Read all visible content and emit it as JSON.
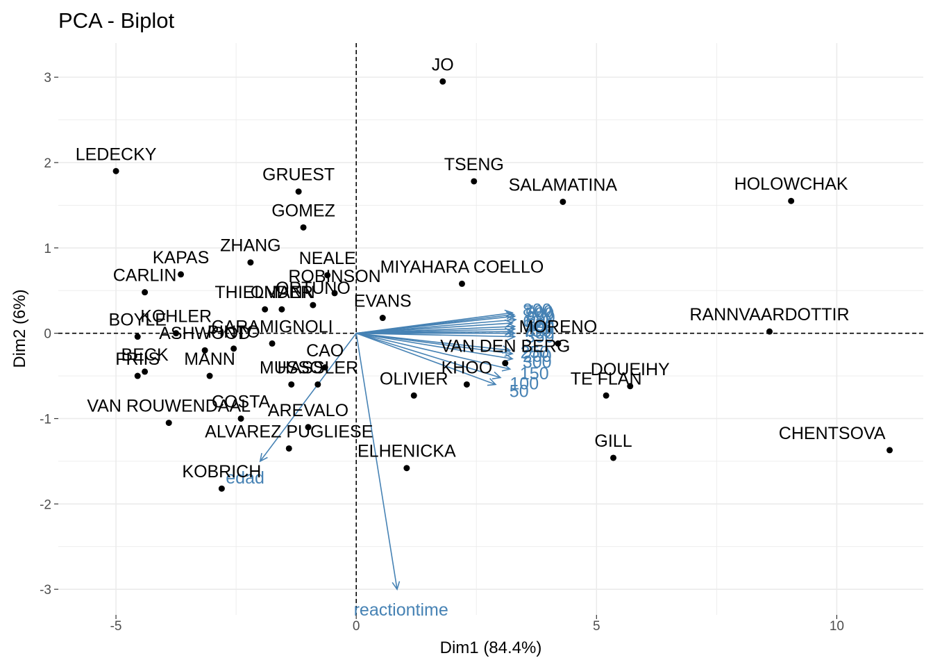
{
  "chart_data": {
    "type": "scatter",
    "title": "PCA - Biplot",
    "xlabel": "Dim1 (84.4%)",
    "ylabel": "Dim2 (6%)",
    "xlim": [
      -6.2,
      11.8
    ],
    "ylim": [
      -3.3,
      3.4
    ],
    "x_ticks": [
      -5,
      0,
      5,
      10
    ],
    "y_ticks": [
      -3,
      -2,
      -1,
      0,
      1,
      2,
      3
    ],
    "x_tick_labels": [
      "-5",
      "0",
      "5",
      "10"
    ],
    "y_tick_labels": [
      "-3",
      "-2",
      "-1",
      "0",
      "1",
      "2",
      "3"
    ],
    "grid": true,
    "reference_lines": {
      "x": 0,
      "y": 0,
      "style": "dashed"
    },
    "colors": {
      "points": "#000000",
      "variables": "#4682B4",
      "grid": "#ebebeb"
    },
    "individuals": [
      {
        "name": "JO",
        "x": 1.8,
        "y": 2.95
      },
      {
        "name": "LEDECKY",
        "x": -5.0,
        "y": 1.9
      },
      {
        "name": "GRUEST",
        "x": -1.2,
        "y": 1.66
      },
      {
        "name": "TSENG",
        "x": 2.45,
        "y": 1.78
      },
      {
        "name": "GOMEZ",
        "x": -1.1,
        "y": 1.24
      },
      {
        "name": "SALAMATINA",
        "x": 4.3,
        "y": 1.54
      },
      {
        "name": "HOLOWCHAK",
        "x": 9.05,
        "y": 1.55
      },
      {
        "name": "ZHANG",
        "x": -2.2,
        "y": 0.83
      },
      {
        "name": "KAPAS",
        "x": -3.65,
        "y": 0.69
      },
      {
        "name": "NEALE",
        "x": -0.6,
        "y": 0.68
      },
      {
        "name": "CARLIN",
        "x": -4.4,
        "y": 0.48
      },
      {
        "name": "MIYAHARA COELLO",
        "x": 2.2,
        "y": 0.58
      },
      {
        "name": "THIELMANN",
        "x": -1.9,
        "y": 0.28
      },
      {
        "name": "ONDER",
        "x": -1.55,
        "y": 0.28
      },
      {
        "name": "ROBINSON",
        "x": -0.45,
        "y": 0.47
      },
      {
        "name": "BOYLE",
        "x": -4.55,
        "y": -0.04
      },
      {
        "name": "KOHLER",
        "x": -3.75,
        "y": 0.0
      },
      {
        "name": "CARAMIGNOLI",
        "x": -1.75,
        "y": -0.12
      },
      {
        "name": "ORTUNO",
        "x": -0.9,
        "y": 0.33
      },
      {
        "name": "EVANS",
        "x": 0.55,
        "y": 0.18
      },
      {
        "name": "MORENO",
        "x": 4.2,
        "y": -0.12
      },
      {
        "name": "RANNVAARDOTTIR",
        "x": 8.6,
        "y": 0.02
      },
      {
        "name": "ASHWOOD",
        "x": -3.15,
        "y": -0.2
      },
      {
        "name": "PINTO",
        "x": -2.55,
        "y": -0.18
      },
      {
        "name": "CAO",
        "x": -0.65,
        "y": -0.4
      },
      {
        "name": "BECK",
        "x": -4.4,
        "y": -0.45
      },
      {
        "name": "FRIIS",
        "x": -4.55,
        "y": -0.5
      },
      {
        "name": "MANN",
        "x": -3.05,
        "y": -0.5
      },
      {
        "name": "OLIVIER",
        "x": 1.2,
        "y": -0.73
      },
      {
        "name": "VAN DEN BERG",
        "x": 3.1,
        "y": -0.35
      },
      {
        "name": "DOUEIHY",
        "x": 5.7,
        "y": -0.62
      },
      {
        "name": "TE FLAN",
        "x": 5.2,
        "y": -0.73
      },
      {
        "name": "MUSSO",
        "x": -1.35,
        "y": -0.6
      },
      {
        "name": "KHOO",
        "x": 2.3,
        "y": -0.6
      },
      {
        "name": "COSTA",
        "x": -2.4,
        "y": -1.0
      },
      {
        "name": "AREVALO",
        "x": -1.0,
        "y": -1.1
      },
      {
        "name": "VAN ROUWENDAAL",
        "x": -3.9,
        "y": -1.05
      },
      {
        "name": "ALVAREZ PUGLIESE",
        "x": -1.4,
        "y": -1.35
      },
      {
        "name": "GILL",
        "x": 5.35,
        "y": -1.46
      },
      {
        "name": "CHENTSOVA",
        "x": 11.1,
        "y": -1.37
      },
      {
        "name": "ELHENICKA",
        "x": 1.05,
        "y": -1.58
      },
      {
        "name": "KOBRICH",
        "x": -2.8,
        "y": -1.82
      },
      {
        "name": "HASSLER",
        "x": -0.8,
        "y": -0.6
      }
    ],
    "variables": [
      {
        "name": "500",
        "x": 3.3,
        "y": 0.2
      },
      {
        "name": "800",
        "x": 3.25,
        "y": 0.24
      },
      {
        "name": "700",
        "x": 3.28,
        "y": 0.22
      },
      {
        "name": "650",
        "x": 3.32,
        "y": 0.16
      },
      {
        "name": "600",
        "x": 3.25,
        "y": 0.12
      },
      {
        "name": "550",
        "x": 3.3,
        "y": 0.08
      },
      {
        "name": "400",
        "x": 3.3,
        "y": 0.05
      },
      {
        "name": "450",
        "x": 3.3,
        "y": 0.0
      },
      {
        "name": "750",
        "x": 3.25,
        "y": 0.02
      },
      {
        "name": "350",
        "x": 3.3,
        "y": -0.04
      },
      {
        "name": "250",
        "x": 3.2,
        "y": -0.2
      },
      {
        "name": "200",
        "x": 3.25,
        "y": -0.24
      },
      {
        "name": "300",
        "x": 3.25,
        "y": -0.3
      },
      {
        "name": "150",
        "x": 3.2,
        "y": -0.42
      },
      {
        "name": "100",
        "x": 3.0,
        "y": -0.52
      },
      {
        "name": "50",
        "x": 2.9,
        "y": -0.6
      },
      {
        "name": "edad",
        "x": -2.0,
        "y": -1.5
      },
      {
        "name": "reactiontime",
        "x": 0.85,
        "y": -3.0
      }
    ]
  }
}
